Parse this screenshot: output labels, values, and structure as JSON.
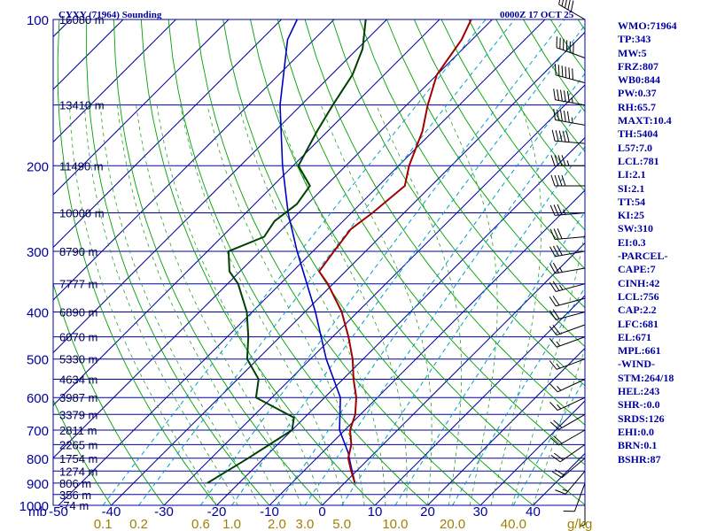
{
  "chart_data": {
    "type": "skew-t sounding",
    "title": "CYXY (71964) Sounding",
    "time": "0000Z 17 OCT 25",
    "pressure_label": "mb",
    "pressure_ticks": [
      "100",
      "200",
      "300",
      "400",
      "500",
      "600",
      "700",
      "800",
      "900",
      "1000"
    ],
    "height_labels": [
      {
        "p": 100,
        "label": "16080 m"
      },
      {
        "p": 150,
        "label": "13410 m"
      },
      {
        "p": 200,
        "label": "11490 m"
      },
      {
        "p": 250,
        "label": "10000 m"
      },
      {
        "p": 300,
        "label": "8790 m"
      },
      {
        "p": 350,
        "label": "7777 m"
      },
      {
        "p": 400,
        "label": "6890 m"
      },
      {
        "p": 450,
        "label": "6070 m"
      },
      {
        "p": 500,
        "label": "5330 m"
      },
      {
        "p": 550,
        "label": "4634 m"
      },
      {
        "p": 600,
        "label": "3987 m"
      },
      {
        "p": 650,
        "label": "3379 m"
      },
      {
        "p": 700,
        "label": "2811 m"
      },
      {
        "p": 750,
        "label": "2265 m"
      },
      {
        "p": 800,
        "label": "1754 m"
      },
      {
        "p": 850,
        "label": "1274 m"
      },
      {
        "p": 900,
        "label": "806 m"
      },
      {
        "p": 950,
        "label": "356 m"
      },
      {
        "p": 1000,
        "label": "-74 m"
      }
    ],
    "temp_ticks": [
      "-50",
      "-40",
      "-30",
      "-20",
      "-10",
      "0",
      "10",
      "20",
      "30",
      "40"
    ],
    "mixing_ratio_label": "g/kg",
    "mixing_ratio_ticks": [
      "0.1",
      "0.2",
      "0.6",
      "1.0",
      "2.0",
      "3.0",
      "5.0",
      "10.0",
      "20.0",
      "40.0"
    ],
    "temperature_profile": [
      {
        "p": 900,
        "t": 2
      },
      {
        "p": 850,
        "t": -1
      },
      {
        "p": 800,
        "t": -4
      },
      {
        "p": 750,
        "t": -6
      },
      {
        "p": 700,
        "t": -9
      },
      {
        "p": 650,
        "t": -11
      },
      {
        "p": 600,
        "t": -14
      },
      {
        "p": 550,
        "t": -18
      },
      {
        "p": 500,
        "t": -22
      },
      {
        "p": 450,
        "t": -27
      },
      {
        "p": 400,
        "t": -33
      },
      {
        "p": 350,
        "t": -41
      },
      {
        "p": 330,
        "t": -45
      },
      {
        "p": 300,
        "t": -46
      },
      {
        "p": 270,
        "t": -47
      },
      {
        "p": 250,
        "t": -46
      },
      {
        "p": 220,
        "t": -45
      },
      {
        "p": 200,
        "t": -48
      },
      {
        "p": 170,
        "t": -52
      },
      {
        "p": 150,
        "t": -56
      },
      {
        "p": 130,
        "t": -60
      },
      {
        "p": 110,
        "t": -62
      },
      {
        "p": 100,
        "t": -64
      }
    ],
    "dewpoint_profile": [
      {
        "p": 900,
        "t": -26
      },
      {
        "p": 800,
        "t": -23
      },
      {
        "p": 700,
        "t": -20
      },
      {
        "p": 660,
        "t": -22
      },
      {
        "p": 600,
        "t": -33
      },
      {
        "p": 550,
        "t": -36
      },
      {
        "p": 500,
        "t": -42
      },
      {
        "p": 450,
        "t": -46
      },
      {
        "p": 400,
        "t": -51
      },
      {
        "p": 350,
        "t": -58
      },
      {
        "p": 330,
        "t": -62
      },
      {
        "p": 300,
        "t": -66
      },
      {
        "p": 280,
        "t": -62
      },
      {
        "p": 260,
        "t": -63
      },
      {
        "p": 240,
        "t": -62
      },
      {
        "p": 220,
        "t": -63
      },
      {
        "p": 200,
        "t": -69
      },
      {
        "p": 170,
        "t": -72
      },
      {
        "p": 150,
        "t": -74
      },
      {
        "p": 130,
        "t": -76
      },
      {
        "p": 115,
        "t": -79
      },
      {
        "p": 100,
        "t": -84
      }
    ],
    "parcel_profile": [
      {
        "p": 900,
        "t": 2
      },
      {
        "p": 830,
        "t": -2
      },
      {
        "p": 780,
        "t": -5
      },
      {
        "p": 700,
        "t": -11
      },
      {
        "p": 600,
        "t": -17
      },
      {
        "p": 500,
        "t": -27
      },
      {
        "p": 400,
        "t": -38
      },
      {
        "p": 300,
        "t": -53
      },
      {
        "p": 250,
        "t": -62
      },
      {
        "p": 200,
        "t": -72
      },
      {
        "p": 150,
        "t": -84
      },
      {
        "p": 110,
        "t": -95
      },
      {
        "p": 100,
        "t": -97
      }
    ],
    "wind_barbs": [
      {
        "p": 100,
        "dir": 300,
        "spd": 50
      },
      {
        "p": 120,
        "dir": 290,
        "spd": 60
      },
      {
        "p": 135,
        "dir": 285,
        "spd": 60
      },
      {
        "p": 150,
        "dir": 280,
        "spd": 55
      },
      {
        "p": 165,
        "dir": 280,
        "spd": 55
      },
      {
        "p": 180,
        "dir": 275,
        "spd": 50
      },
      {
        "p": 200,
        "dir": 270,
        "spd": 45
      },
      {
        "p": 220,
        "dir": 270,
        "spd": 40
      },
      {
        "p": 250,
        "dir": 265,
        "spd": 35
      },
      {
        "p": 280,
        "dir": 265,
        "spd": 30
      },
      {
        "p": 300,
        "dir": 260,
        "spd": 30
      },
      {
        "p": 325,
        "dir": 260,
        "spd": 25
      },
      {
        "p": 350,
        "dir": 255,
        "spd": 25
      },
      {
        "p": 375,
        "dir": 255,
        "spd": 20
      },
      {
        "p": 400,
        "dir": 255,
        "spd": 20
      },
      {
        "p": 425,
        "dir": 250,
        "spd": 20
      },
      {
        "p": 450,
        "dir": 250,
        "spd": 15
      },
      {
        "p": 500,
        "dir": 250,
        "spd": 15
      },
      {
        "p": 550,
        "dir": 245,
        "spd": 15
      },
      {
        "p": 600,
        "dir": 245,
        "spd": 15
      },
      {
        "p": 650,
        "dir": 240,
        "spd": 20
      },
      {
        "p": 700,
        "dir": 240,
        "spd": 20
      },
      {
        "p": 750,
        "dir": 235,
        "spd": 20
      },
      {
        "p": 800,
        "dir": 230,
        "spd": 20
      },
      {
        "p": 850,
        "dir": 220,
        "spd": 15
      },
      {
        "p": 900,
        "dir": 200,
        "spd": 10
      },
      {
        "p": 950,
        "dir": 180,
        "spd": 5
      }
    ]
  },
  "indices": [
    "WMO:71964",
    "TP:343",
    "MW:5",
    "FRZ:807",
    "WB0:844",
    "PW:0.37",
    "RH:65.7",
    "MAXT:10.4",
    "TH:5404",
    "L57:7.0",
    "LCL:781",
    "LI:2.1",
    "SI:2.1",
    "TT:54",
    "KI:25",
    "SW:310",
    "EI:0.3",
    "-PARCEL-",
    "CAPE:7",
    "CINH:42",
    "LCL:756",
    "CAP:2.2",
    "LFC:681",
    "EL:671",
    "MPL:661",
    "-WIND-",
    "STM:264/18",
    "HEL:243",
    "SHR-:0.0",
    "SRDS:126",
    "EHI:0.0",
    "BRN:0.1",
    "BSHR:87"
  ],
  "colors": {
    "isobar": "#0000a0",
    "isotherm": "#0000a0",
    "dry_adiabat": "#00a000",
    "moist_adiabat": "#2aa02a",
    "mixing_ratio": "#00a0c0",
    "temperature": "#a00000",
    "dewpoint": "#004000",
    "parcel": "#0000c0",
    "wind": "#000000",
    "tick_text": "#0000a0",
    "mixing_text": "#a08000"
  }
}
